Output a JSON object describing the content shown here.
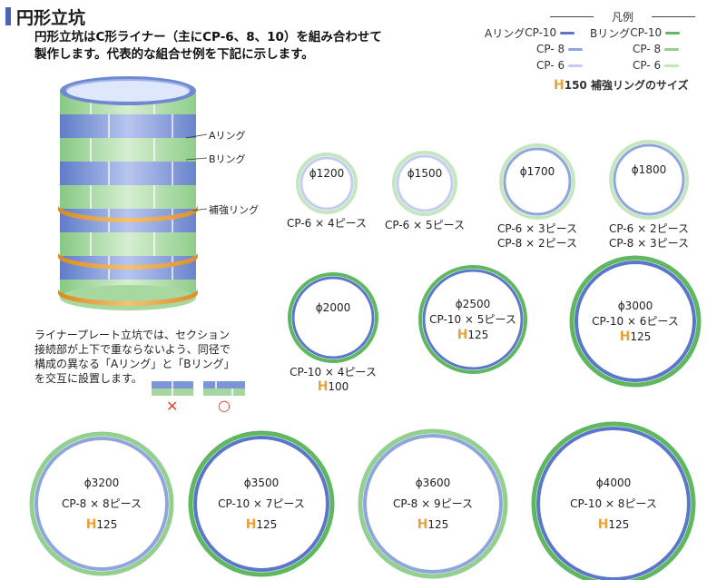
{
  "header": {
    "title": "円形立坑",
    "intro_line1": "円形立坑はC形ライナー（主にCP-6、8、10）を組み合わせて",
    "intro_line2": "製作します。代表的な組合せ例を下記に示します。"
  },
  "legend": {
    "heading": "凡例",
    "a_ring_label": "Aリング",
    "b_ring_label": "Bリング",
    "a_items": [
      "CP-10",
      "CP- 8",
      "CP- 6"
    ],
    "b_items": [
      "CP-10",
      "CP- 8",
      "CP- 6"
    ],
    "h_mark": "H",
    "h_note": "150 補強リングのサイズ",
    "colors": {
      "cp10_blue": "#5b77c9",
      "cp8_blue": "#8fa6dc",
      "cp6_blue": "#c3cdef",
      "cp10_green": "#5fb760",
      "cp8_green": "#93cf8e",
      "cp6_green": "#c5e6bf",
      "reinforce_orange": "#e6a33a"
    }
  },
  "shaft": {
    "label_a": "Aリング",
    "label_b": "Bリング",
    "label_reinforce": "補強リング"
  },
  "note": {
    "line1": "ライナープレート立坑では、セクション",
    "line2": "接続部が上下で重ならないよう、同径で",
    "line3": "構成の異なる「Aリング」と「Bリング」",
    "line4": "を交互に設置します。",
    "mark_bad": "✕",
    "mark_good": "○"
  },
  "rings": [
    {
      "diameter": "ϕ1200",
      "composition": [
        "CP-6 × 4ピース"
      ],
      "h": "",
      "outer_green": "cp6",
      "inner_blue": "cp6"
    },
    {
      "diameter": "ϕ1500",
      "composition": [
        "CP-6 × 5ピース"
      ],
      "h": "",
      "outer_green": "cp6",
      "inner_blue": "cp6"
    },
    {
      "diameter": "ϕ1700",
      "composition": [
        "CP-6 × 3ピース",
        "CP-8 × 2ピース"
      ],
      "h": "",
      "outer_green": "cp6",
      "inner_blue": "cp8"
    },
    {
      "diameter": "ϕ1800",
      "composition": [
        "CP-6 × 2ピース",
        "CP-8 × 3ピース"
      ],
      "h": "",
      "outer_green": "cp6",
      "inner_blue": "cp8"
    },
    {
      "diameter": "ϕ2000",
      "composition": [
        "CP-10 × 4ピース"
      ],
      "h": "100",
      "outer_green": "cp10",
      "inner_blue": "cp10"
    },
    {
      "diameter": "ϕ2500",
      "composition": [
        "CP-10 × 5ピース"
      ],
      "h": "125",
      "outer_green": "cp10",
      "inner_blue": "cp10"
    },
    {
      "diameter": "ϕ3000",
      "composition": [
        "CP-10 × 6ピース"
      ],
      "h": "125",
      "outer_green": "cp10",
      "inner_blue": "cp10"
    },
    {
      "diameter": "ϕ3200",
      "composition": [
        "CP-8 × 8ピース"
      ],
      "h": "125",
      "outer_green": "cp8",
      "inner_blue": "cp8"
    },
    {
      "diameter": "ϕ3500",
      "composition": [
        "CP-10 × 7ピース"
      ],
      "h": "125",
      "outer_green": "cp10",
      "inner_blue": "cp10"
    },
    {
      "diameter": "ϕ3600",
      "composition": [
        "CP-8 × 9ピース"
      ],
      "h": "125",
      "outer_green": "cp8",
      "inner_blue": "cp8"
    },
    {
      "diameter": "ϕ4000",
      "composition": [
        "CP-10 × 8ピース"
      ],
      "h": "125",
      "outer_green": "cp10",
      "inner_blue": "cp10"
    }
  ]
}
